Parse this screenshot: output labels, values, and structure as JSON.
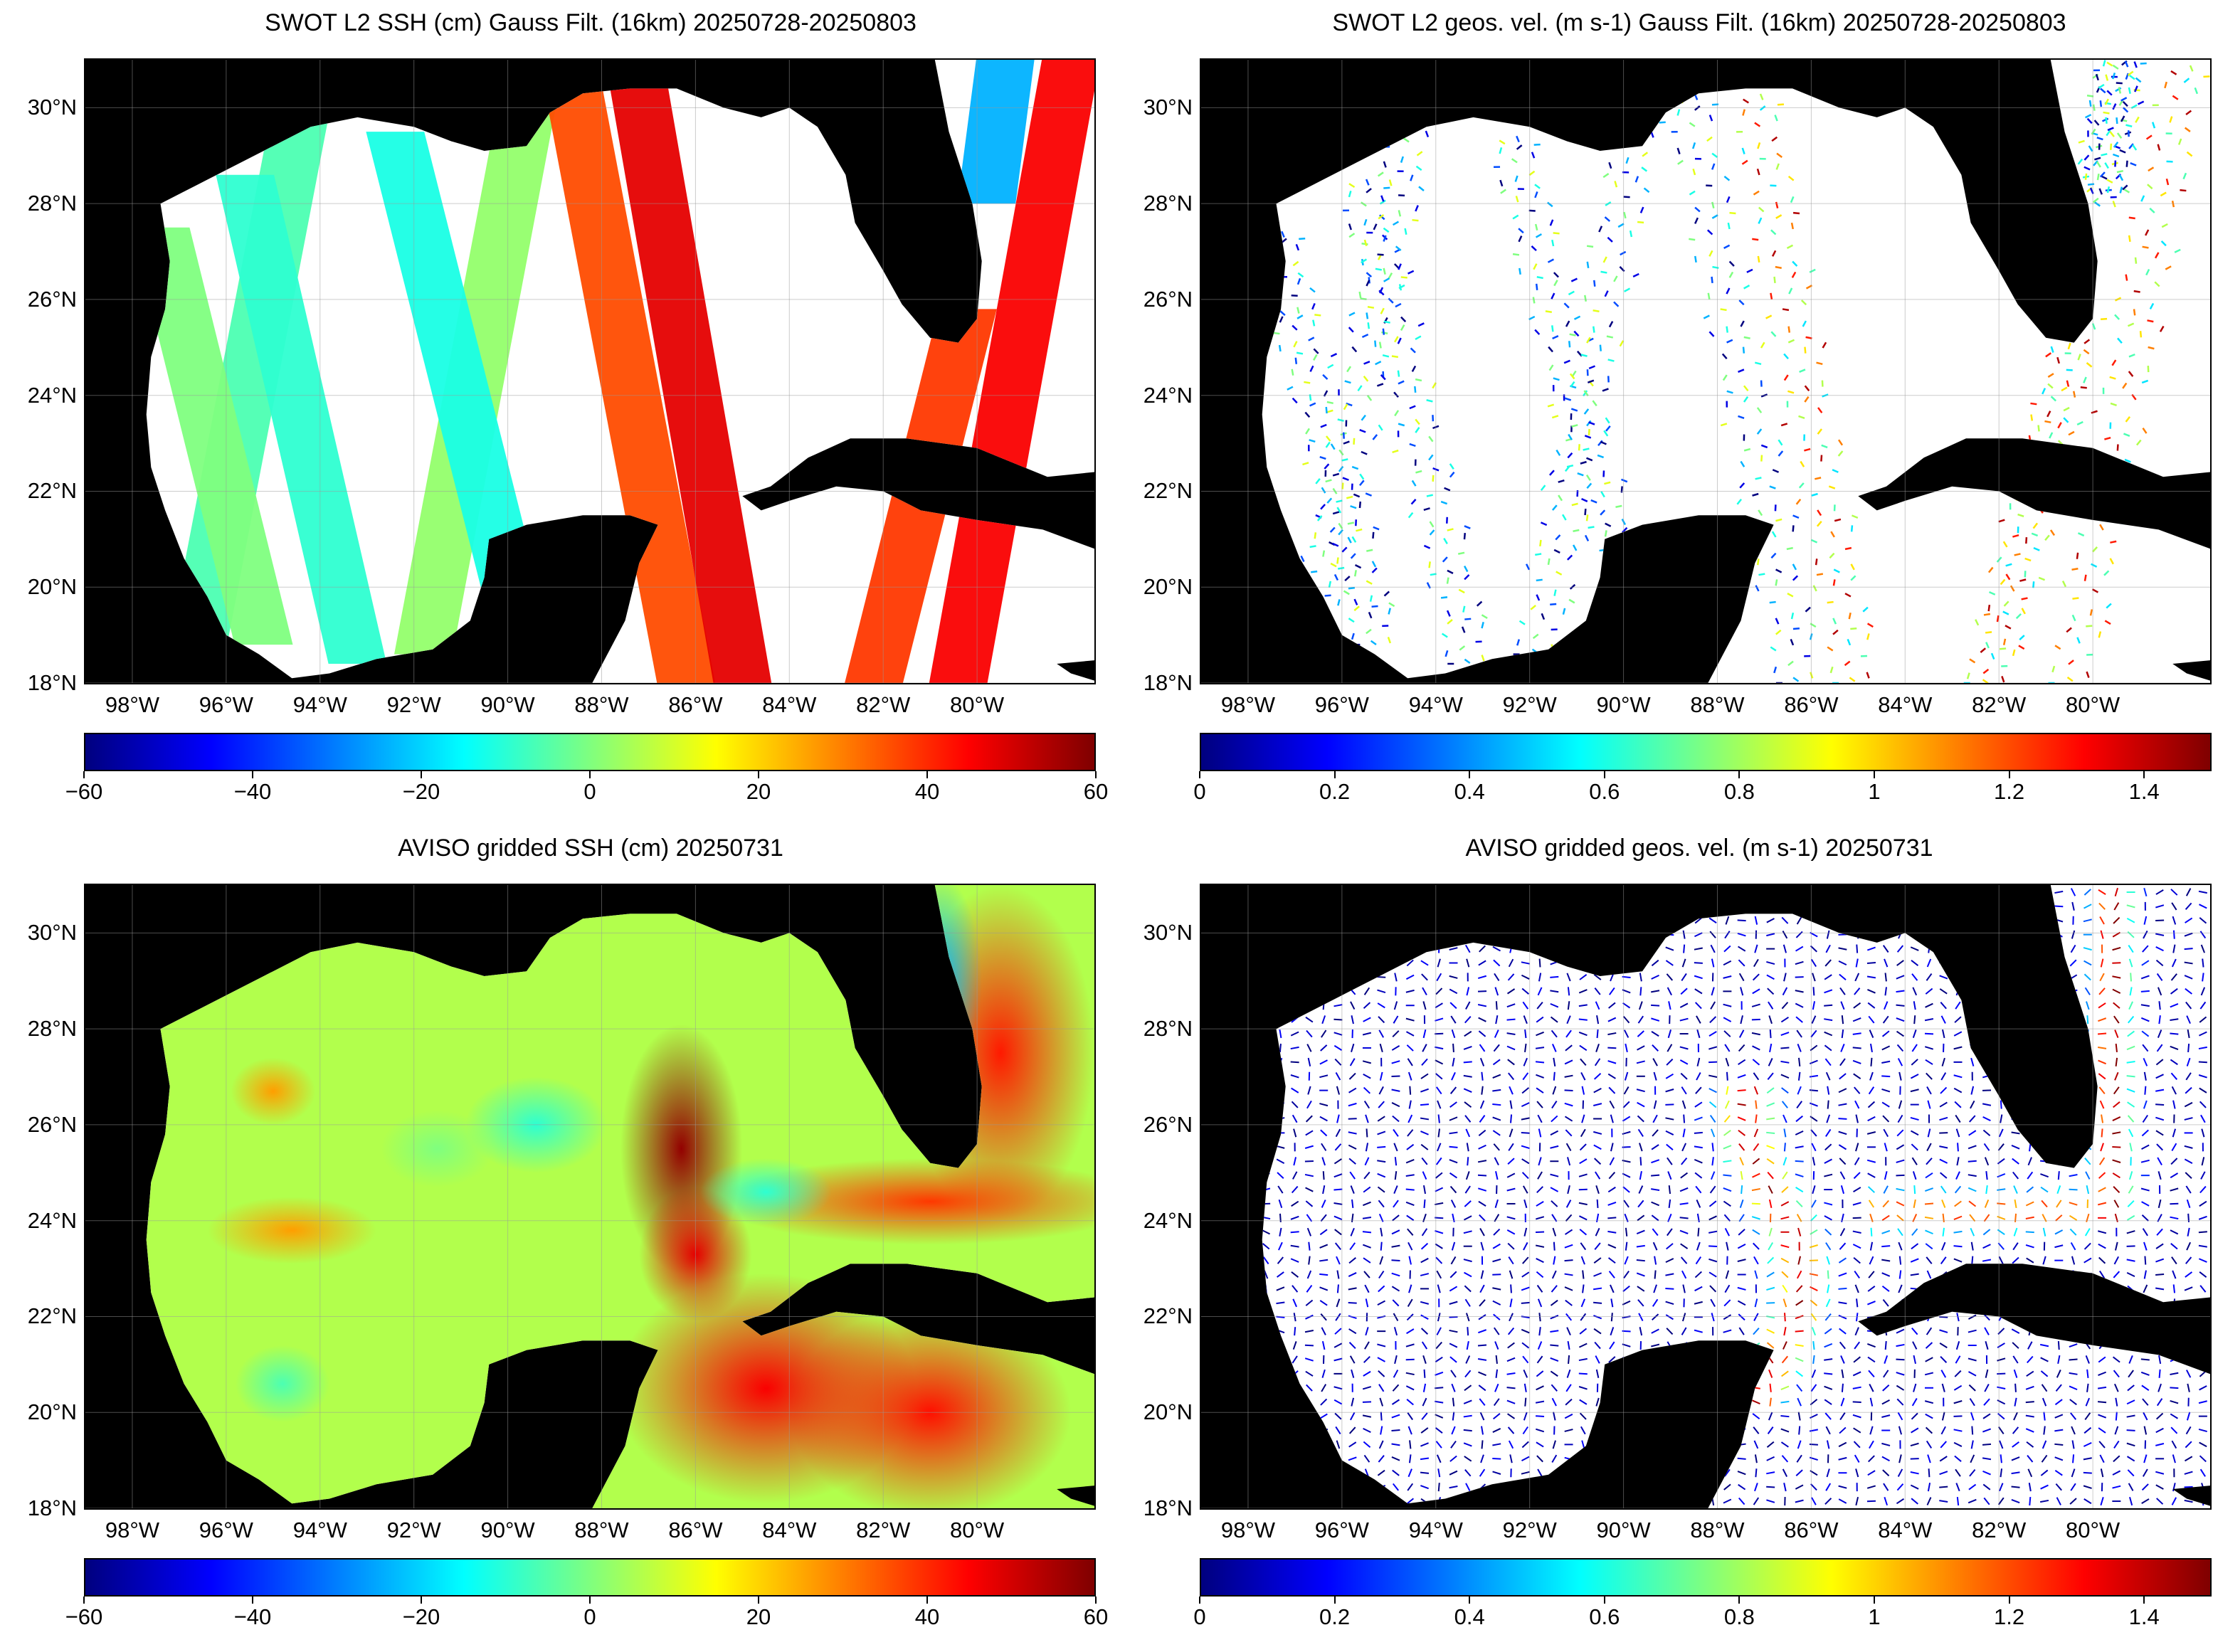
{
  "colormap": [
    "#00007f",
    "#0000ff",
    "#007fff",
    "#00ffff",
    "#7fff7f",
    "#ffff00",
    "#ff7f00",
    "#ff0000",
    "#7f0000"
  ],
  "land_color": "#000000",
  "grid_color": "#9a9a9a",
  "lat_labels": [
    "30°N",
    "28°N",
    "26°N",
    "24°N",
    "22°N",
    "20°N",
    "18°N"
  ],
  "lon_labels": [
    "98°W",
    "96°W",
    "94°W",
    "92°W",
    "90°W",
    "88°W",
    "86°W",
    "84°W",
    "82°W",
    "80°W"
  ],
  "panels": [
    {
      "id": "swot-ssh",
      "title": "SWOT L2 SSH (cm) Gauss Filt. (16km) 20250728-20250803",
      "kind": "swaths-ssh",
      "colorbar": {
        "min": -60,
        "max": 60,
        "ticks": [
          "−60",
          "−40",
          "−20",
          "0",
          "20",
          "40",
          "60"
        ]
      }
    },
    {
      "id": "swot-vel",
      "title": "SWOT L2 geos. vel. (m s-1) Gauss Filt. (16km) 20250728-20250803",
      "kind": "swaths-vel",
      "colorbar": {
        "min": 0,
        "max": 1.5,
        "ticks": [
          "0",
          "0.2",
          "0.4",
          "0.6",
          "0.8",
          "1",
          "1.2",
          "1.4"
        ]
      }
    },
    {
      "id": "aviso-ssh",
      "title": "AVISO gridded SSH (cm) 20250731",
      "kind": "grid-ssh",
      "colorbar": {
        "min": -60,
        "max": 60,
        "ticks": [
          "−60",
          "−40",
          "−20",
          "0",
          "20",
          "40",
          "60"
        ]
      }
    },
    {
      "id": "aviso-vel",
      "title": "AVISO gridded geos. vel. (m s-1)  20250731",
      "kind": "grid-vel",
      "colorbar": {
        "min": 0,
        "max": 1.5,
        "ticks": [
          "0",
          "0.2",
          "0.4",
          "0.6",
          "0.8",
          "1",
          "1.2",
          "1.4"
        ]
      }
    }
  ]
}
